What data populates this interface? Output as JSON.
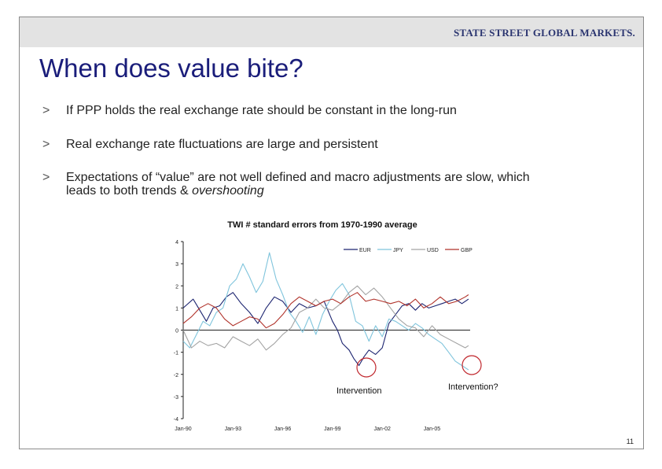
{
  "header": {
    "brand": "STATE STREET GLOBAL MARKETS."
  },
  "slide": {
    "title": "When does value bite?",
    "bullets": [
      {
        "marker": ">",
        "text": "If PPP holds the real exchange rate should be constant in the long-run"
      },
      {
        "marker": ">",
        "text": "Real exchange rate fluctuations are large and persistent"
      },
      {
        "marker": ">",
        "line1": "Expectations of “value” are not well defined and macro adjustments are slow, which",
        "line2": "leads to both trends & ",
        "emphasis": "overshooting"
      }
    ],
    "page_number": "11"
  },
  "annotations": {
    "intervention1": "Intervention",
    "intervention2": "Intervention?"
  },
  "colors": {
    "EUR": "#1c2470",
    "JPY": "#7fc4dc",
    "USD": "#a3a3a3",
    "GBP": "#b0322a",
    "marker_circle": "#c0262c",
    "title": "#1a1d7a"
  },
  "chart_data": {
    "type": "line",
    "title": "TWI # standard errors from 1970-1990 average",
    "xlabel": "",
    "ylabel": "",
    "ylim": [
      -4,
      4
    ],
    "yticks": [
      "4",
      "3",
      "2",
      "1",
      "0",
      "-1",
      "-2",
      "-3",
      "-4"
    ],
    "xlim": [
      1990.0,
      2007.3
    ],
    "xticks": [
      {
        "label": "Jan-90",
        "value": 1990
      },
      {
        "label": "Jan-93",
        "value": 1993
      },
      {
        "label": "Jan-96",
        "value": 1996
      },
      {
        "label": "Jan-99",
        "value": 1999
      },
      {
        "label": "Jan-02",
        "value": 2002
      },
      {
        "label": "Jan-05",
        "value": 2005
      }
    ],
    "legend_position": "top-right",
    "series": [
      {
        "name": "EUR",
        "x": [
          1990.0,
          1990.6,
          1991.0,
          1991.4,
          1991.8,
          1992.2,
          1992.6,
          1993.0,
          1993.5,
          1994.0,
          1994.5,
          1995.0,
          1995.5,
          1996.0,
          1996.5,
          1997.0,
          1997.5,
          1998.0,
          1998.5,
          1999.0,
          1999.3,
          1999.6,
          2000.0,
          2000.3,
          2000.6,
          2000.9,
          2001.2,
          2001.6,
          2002.0,
          2002.4,
          2002.8,
          2003.2,
          2003.6,
          2004.0,
          2004.4,
          2004.8,
          2005.2,
          2005.6,
          2006.0,
          2006.4,
          2006.8,
          2007.2
        ],
        "values": [
          1.0,
          1.4,
          0.9,
          0.4,
          1.0,
          1.1,
          1.5,
          1.7,
          1.2,
          0.8,
          0.3,
          1.0,
          1.5,
          1.3,
          0.8,
          1.2,
          1.0,
          1.1,
          1.3,
          0.4,
          0.0,
          -0.6,
          -0.9,
          -1.3,
          -1.6,
          -1.2,
          -0.9,
          -1.1,
          -0.8,
          0.3,
          0.7,
          1.1,
          1.2,
          0.9,
          1.2,
          1.0,
          1.1,
          1.2,
          1.3,
          1.4,
          1.2,
          1.4
        ]
      },
      {
        "name": "JPY",
        "x": [
          1990.0,
          1990.4,
          1990.8,
          1991.2,
          1991.6,
          1992.0,
          1992.4,
          1992.8,
          1993.2,
          1993.6,
          1994.0,
          1994.4,
          1994.8,
          1995.2,
          1995.6,
          1996.0,
          1996.4,
          1996.8,
          1997.2,
          1997.6,
          1998.0,
          1998.4,
          1998.8,
          1999.2,
          1999.6,
          2000.0,
          2000.4,
          2000.8,
          2001.2,
          2001.6,
          2002.0,
          2002.4,
          2002.8,
          2003.2,
          2003.6,
          2004.0,
          2004.4,
          2004.8,
          2005.2,
          2005.6,
          2006.0,
          2006.4,
          2006.8,
          2007.2
        ],
        "values": [
          -0.5,
          -0.8,
          -0.2,
          0.4,
          0.2,
          0.8,
          1.0,
          2.0,
          2.3,
          3.0,
          2.4,
          1.7,
          2.2,
          3.5,
          2.3,
          1.6,
          0.8,
          0.4,
          -0.1,
          0.6,
          -0.2,
          0.7,
          1.3,
          1.8,
          2.1,
          1.6,
          0.4,
          0.2,
          -0.5,
          0.2,
          -0.3,
          0.5,
          0.4,
          0.2,
          0.0,
          0.3,
          0.1,
          -0.2,
          -0.4,
          -0.6,
          -1.0,
          -1.4,
          -1.6,
          -1.8
        ]
      },
      {
        "name": "USD",
        "x": [
          1990.0,
          1990.5,
          1991.0,
          1991.5,
          1992.0,
          1992.5,
          1993.0,
          1993.5,
          1994.0,
          1994.5,
          1995.0,
          1995.5,
          1996.0,
          1996.5,
          1997.0,
          1997.5,
          1998.0,
          1998.5,
          1999.0,
          1999.5,
          2000.0,
          2000.5,
          2001.0,
          2001.5,
          2002.0,
          2002.5,
          2003.0,
          2003.5,
          2004.0,
          2004.5,
          2005.0,
          2005.5,
          2006.0,
          2006.5,
          2007.0,
          2007.2
        ],
        "values": [
          0.0,
          -0.8,
          -0.5,
          -0.7,
          -0.6,
          -0.8,
          -0.3,
          -0.5,
          -0.7,
          -0.4,
          -0.9,
          -0.6,
          -0.2,
          0.1,
          0.8,
          1.0,
          1.4,
          1.0,
          0.9,
          1.2,
          1.7,
          2.0,
          1.6,
          1.9,
          1.5,
          1.0,
          0.5,
          0.2,
          0.1,
          -0.3,
          0.2,
          -0.2,
          -0.4,
          -0.6,
          -0.8,
          -0.7
        ]
      },
      {
        "name": "GBP",
        "x": [
          1990.0,
          1990.5,
          1991.0,
          1991.5,
          1992.0,
          1992.5,
          1993.0,
          1993.5,
          1994.0,
          1994.5,
          1995.0,
          1995.5,
          1996.0,
          1996.5,
          1997.0,
          1997.5,
          1998.0,
          1998.5,
          1999.0,
          1999.5,
          2000.0,
          2000.5,
          2001.0,
          2001.5,
          2002.0,
          2002.5,
          2003.0,
          2003.5,
          2004.0,
          2004.5,
          2005.0,
          2005.5,
          2006.0,
          2006.5,
          2007.0,
          2007.2
        ],
        "values": [
          0.3,
          0.6,
          1.0,
          1.2,
          1.0,
          0.5,
          0.2,
          0.4,
          0.6,
          0.5,
          0.1,
          0.3,
          0.7,
          1.2,
          1.5,
          1.3,
          1.1,
          1.3,
          1.4,
          1.2,
          1.5,
          1.7,
          1.3,
          1.4,
          1.3,
          1.2,
          1.3,
          1.1,
          1.4,
          1.0,
          1.2,
          1.5,
          1.2,
          1.3,
          1.5,
          1.6
        ]
      }
    ]
  }
}
